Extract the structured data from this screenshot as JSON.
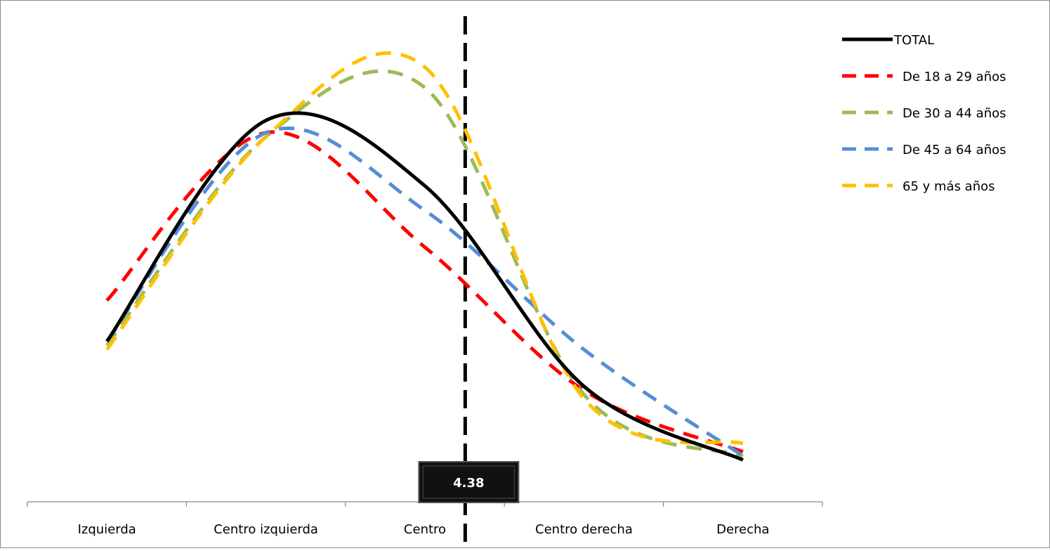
{
  "chart_data": {
    "type": "line",
    "smooth": true,
    "categories": [
      "Izquierda",
      "Centro izquierda",
      "Centro",
      "Centro derecha",
      "Derecha"
    ],
    "ylim": [
      0,
      1
    ],
    "grid": false,
    "legend_position": "right",
    "series": [
      {
        "name": "TOTAL",
        "color": "#000000",
        "dash": "solid",
        "values": [
          0.37,
          0.91,
          0.75,
          0.26,
          0.08
        ]
      },
      {
        "name": "De 18 a 29 años",
        "color": "#ff0000",
        "dash": "dashed",
        "values": [
          0.47,
          0.88,
          0.6,
          0.25,
          0.1
        ]
      },
      {
        "name": "De 30 a 44 años",
        "color": "#9bbb59",
        "dash": "dashed",
        "values": [
          0.36,
          0.87,
          0.99,
          0.24,
          0.09
        ]
      },
      {
        "name": "De 45 a 64 años",
        "color": "#558ed5",
        "dash": "dashed",
        "values": [
          0.37,
          0.88,
          0.69,
          0.35,
          0.09
        ]
      },
      {
        "name": "65 y más años",
        "color": "#ffc000",
        "dash": "dashed",
        "values": [
          0.35,
          0.87,
          1.04,
          0.23,
          0.12
        ]
      }
    ],
    "reference_line": {
      "x": 4.38,
      "label": "4.38",
      "style": "dashed",
      "color": "#000000"
    },
    "x_scale": {
      "category_positions": [
        1,
        2.5,
        4,
        5.5,
        7
      ]
    }
  }
}
